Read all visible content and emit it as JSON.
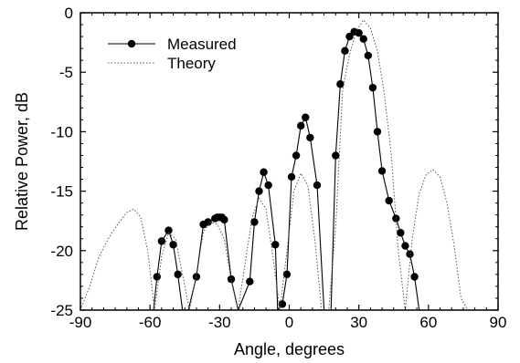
{
  "chart_data": {
    "type": "line",
    "xlabel": "Angle, degrees",
    "ylabel": "Relative Power, dB",
    "xlim": [
      -90,
      90
    ],
    "ylim": [
      -25,
      0
    ],
    "x_ticks": [
      -90,
      -60,
      -30,
      0,
      30,
      60,
      90
    ],
    "y_ticks": [
      0,
      -5,
      -10,
      -15,
      -20,
      -25
    ],
    "legend_position": "top-left",
    "series": [
      {
        "name": "Measured",
        "style": "solid line with filled circle markers",
        "color": "#000000",
        "x": [
          -58.5,
          -57,
          -55,
          -52,
          -50,
          -48,
          -46,
          -43.5,
          -40,
          -37,
          -35,
          -32,
          -31,
          -30,
          -29,
          -28,
          -25,
          -22,
          -17,
          -15,
          -13,
          -11,
          -9,
          -6,
          -5,
          -3,
          -1,
          1,
          3,
          5,
          7,
          9,
          12,
          15,
          18,
          20,
          22,
          24,
          26,
          28,
          30,
          32,
          34,
          36,
          38,
          40,
          43,
          46,
          48,
          50,
          52,
          54,
          56,
          58,
          60,
          62,
          64,
          66
        ],
        "y": [
          -25,
          -22.2,
          -19.2,
          -18.3,
          -19.5,
          -22,
          -25,
          -25,
          -22.2,
          -17.8,
          -17.6,
          -17.3,
          -17.2,
          -17.2,
          -17.2,
          -17.4,
          -22.4,
          -25,
          -22.6,
          -17.6,
          -15,
          -13.4,
          -14.5,
          -19.5,
          -25,
          -24.5,
          -22,
          -13.8,
          -12,
          -9.5,
          -8.8,
          -10.5,
          -14.5,
          -25,
          -25,
          -12,
          -6,
          -3.2,
          -2.0,
          -1.6,
          -1.7,
          -2.2,
          -3.6,
          -6.3,
          -10,
          -13.3,
          -15.8,
          -17.3,
          -18.5,
          -19.6,
          -20.3,
          -22.2,
          -25,
          -25,
          -25,
          -25,
          -25,
          -25
        ]
      },
      {
        "name": "Theory",
        "style": "dotted line",
        "color": "#555555",
        "x": [
          -90,
          -86,
          -82,
          -78,
          -74,
          -70,
          -67,
          -64,
          -61,
          -58,
          -55,
          -52,
          -49,
          -46,
          -43,
          -40,
          -37,
          -34,
          -31,
          -28,
          -25,
          -22,
          -19,
          -16,
          -13,
          -10,
          -7,
          -4,
          -1,
          2,
          5,
          8,
          11,
          14,
          17,
          20,
          23,
          26,
          29,
          32,
          35,
          38,
          41,
          44,
          47,
          50,
          53,
          56,
          59,
          62,
          65,
          68,
          71,
          74,
          77,
          80,
          84,
          88,
          90
        ],
        "y": [
          -25,
          -23,
          -20.5,
          -19,
          -17.8,
          -16.8,
          -16.5,
          -17.2,
          -20,
          -25,
          -20.5,
          -18.5,
          -19,
          -22,
          -25,
          -22,
          -18.4,
          -17.6,
          -17.8,
          -19,
          -22.5,
          -25,
          -21,
          -17.2,
          -15.6,
          -16.5,
          -20.5,
          -25,
          -20,
          -15,
          -13.5,
          -14.5,
          -19,
          -25,
          -25,
          -18,
          -6.5,
          -3.5,
          -1.5,
          -0.6,
          -1.3,
          -3.2,
          -6.8,
          -12,
          -20,
          -25,
          -19,
          -15.2,
          -13.6,
          -13.2,
          -13.8,
          -16,
          -19.5,
          -24,
          -25,
          -25,
          -25,
          -25,
          -25
        ]
      }
    ]
  }
}
